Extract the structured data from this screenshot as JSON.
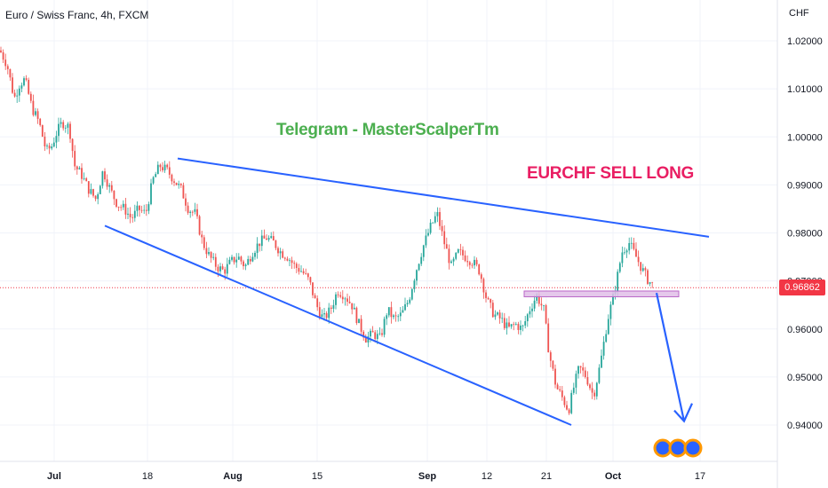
{
  "chart_data": {
    "type": "candlestick",
    "title": "Euro / Swiss Franc, 4h, FXCM",
    "currency": "CHF",
    "ylim": [
      0.9325,
      1.0285
    ],
    "y_ticks": [
      "1.02000",
      "1.01000",
      "1.00000",
      "0.99000",
      "0.98000",
      "0.97000",
      "0.96000",
      "0.95000",
      "0.94000"
    ],
    "y_tick_values": [
      1.02,
      1.01,
      1.0,
      0.99,
      0.98,
      0.97,
      0.96,
      0.95,
      0.94
    ],
    "x_ticks": [
      "Jul",
      "18",
      "Aug",
      "15",
      "Sep",
      "12",
      "21",
      "Oct",
      "17"
    ],
    "last_price": "0.96862",
    "last_price_value": 0.9686,
    "close_path": [
      [
        0,
        1.018
      ],
      [
        8,
        1.015
      ],
      [
        16,
        1.008
      ],
      [
        22,
        1.011
      ],
      [
        28,
        1.012
      ],
      [
        36,
        1.006
      ],
      [
        44,
        1.003
      ],
      [
        52,
        0.997
      ],
      [
        58,
        0.998
      ],
      [
        64,
        1.001
      ],
      [
        70,
        1.003
      ],
      [
        78,
        1.002
      ],
      [
        84,
        0.994
      ],
      [
        92,
        0.992
      ],
      [
        100,
        0.989
      ],
      [
        108,
        0.987
      ],
      [
        116,
        0.993
      ],
      [
        124,
        0.989
      ],
      [
        132,
        0.986
      ],
      [
        140,
        0.985
      ],
      [
        148,
        0.983
      ],
      [
        156,
        0.985
      ],
      [
        164,
        0.984
      ],
      [
        172,
        0.991
      ],
      [
        180,
        0.994
      ],
      [
        188,
        0.993
      ],
      [
        196,
        0.991
      ],
      [
        204,
        0.989
      ],
      [
        212,
        0.985
      ],
      [
        220,
        0.984
      ],
      [
        228,
        0.978
      ],
      [
        236,
        0.975
      ],
      [
        244,
        0.973
      ],
      [
        252,
        0.972
      ],
      [
        260,
        0.974
      ],
      [
        268,
        0.975
      ],
      [
        276,
        0.973
      ],
      [
        284,
        0.976
      ],
      [
        292,
        0.978
      ],
      [
        300,
        0.979
      ],
      [
        308,
        0.978
      ],
      [
        316,
        0.976
      ],
      [
        324,
        0.975
      ],
      [
        332,
        0.973
      ],
      [
        340,
        0.972
      ],
      [
        348,
        0.97
      ],
      [
        356,
        0.965
      ],
      [
        364,
        0.962
      ],
      [
        372,
        0.964
      ],
      [
        380,
        0.968
      ],
      [
        388,
        0.967
      ],
      [
        396,
        0.965
      ],
      [
        404,
        0.961
      ],
      [
        412,
        0.958
      ],
      [
        420,
        0.959
      ],
      [
        428,
        0.958
      ],
      [
        436,
        0.964
      ],
      [
        444,
        0.962
      ],
      [
        452,
        0.963
      ],
      [
        460,
        0.966
      ],
      [
        468,
        0.972
      ],
      [
        476,
        0.977
      ],
      [
        484,
        0.981
      ],
      [
        492,
        0.984
      ],
      [
        500,
        0.978
      ],
      [
        508,
        0.973
      ],
      [
        516,
        0.976
      ],
      [
        524,
        0.975
      ],
      [
        532,
        0.974
      ],
      [
        540,
        0.972
      ],
      [
        548,
        0.966
      ],
      [
        556,
        0.963
      ],
      [
        564,
        0.962
      ],
      [
        572,
        0.96
      ],
      [
        580,
        0.961
      ],
      [
        588,
        0.96
      ],
      [
        596,
        0.964
      ],
      [
        604,
        0.967
      ],
      [
        612,
        0.964
      ],
      [
        618,
        0.955
      ],
      [
        626,
        0.948
      ],
      [
        632,
        0.946
      ],
      [
        640,
        0.943
      ],
      [
        646,
        0.948
      ],
      [
        652,
        0.952
      ],
      [
        660,
        0.95
      ],
      [
        668,
        0.946
      ],
      [
        676,
        0.953
      ],
      [
        684,
        0.962
      ],
      [
        692,
        0.968
      ],
      [
        700,
        0.976
      ],
      [
        708,
        0.978
      ],
      [
        716,
        0.975
      ],
      [
        724,
        0.972
      ],
      [
        730,
        0.97
      ],
      [
        736,
        0.969
      ]
    ],
    "drawings": {
      "upper_trend_line": [
        [
          200,
          0.9955
        ],
        [
          798,
          0.9792
        ]
      ],
      "lower_trend_line": [
        [
          118,
          0.9815
        ],
        [
          643,
          0.94
        ]
      ],
      "support_zone": {
        "x": [
          590,
          764
        ],
        "y": [
          0.9667,
          0.9679
        ],
        "color": "#e1bee7"
      },
      "projection_arrow": [
        [
          739,
          0.9675
        ],
        [
          770,
          0.9408
        ]
      ]
    },
    "annotations": [
      {
        "text": "Telegram - MasterScalperTm",
        "color": "#4caf50"
      },
      {
        "text": "EURCHF SELL LONG",
        "color": "#e91e63"
      }
    ],
    "colors": {
      "up": "#26a69a",
      "down": "#ef5350",
      "line": "#2962ff",
      "grid": "#f0f3fa"
    },
    "grid": true
  }
}
